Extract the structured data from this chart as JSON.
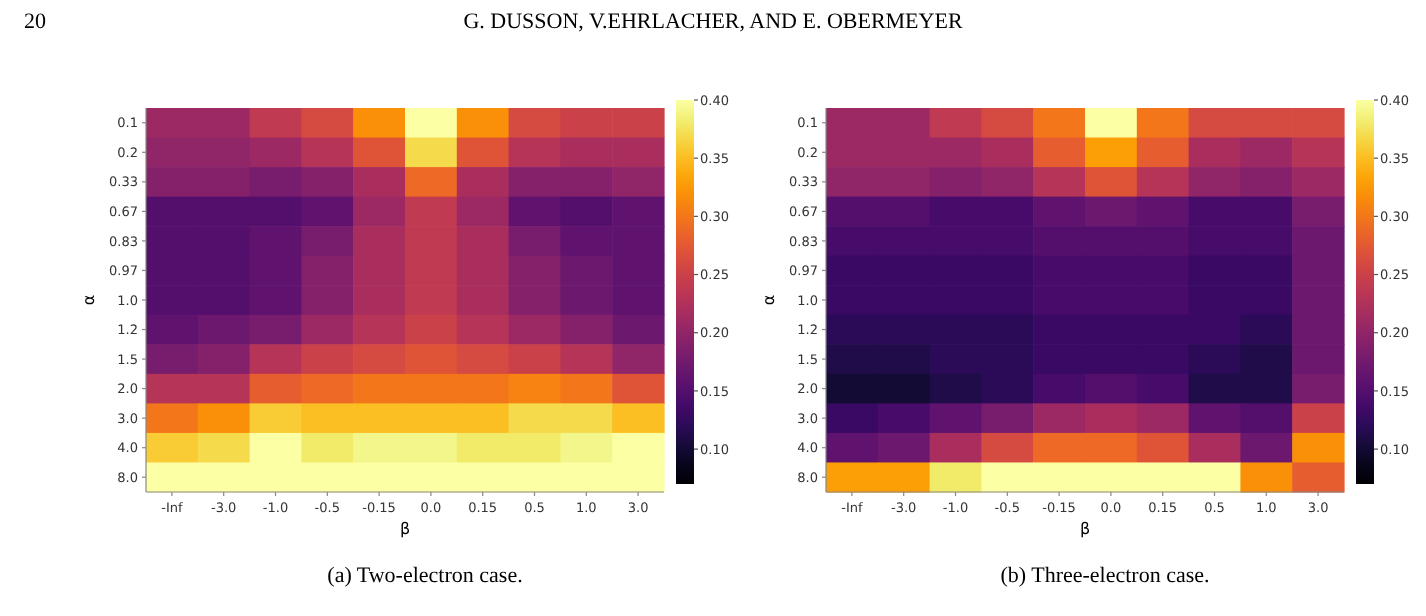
{
  "chart_data": [
    {
      "type": "heatmap",
      "xlabel": "β",
      "ylabel": "α",
      "categories": [
        "-Inf",
        "-3.0",
        "-1.0",
        "-0.5",
        "-0.15",
        "0.0",
        "0.15",
        "0.5",
        "1.0",
        "3.0"
      ],
      "y_categories": [
        "0.1",
        "0.2",
        "0.33",
        "0.67",
        "0.83",
        "0.97",
        "1.0",
        "1.2",
        "1.5",
        "2.0",
        "3.0",
        "4.0",
        "8.0"
      ],
      "cells": [
        [
          0.21,
          0.21,
          0.24,
          0.26,
          0.32,
          0.4,
          0.32,
          0.26,
          0.25,
          0.25
        ],
        [
          0.2,
          0.2,
          0.21,
          0.23,
          0.27,
          0.37,
          0.27,
          0.23,
          0.22,
          0.22
        ],
        [
          0.19,
          0.19,
          0.18,
          0.19,
          0.22,
          0.29,
          0.22,
          0.19,
          0.19,
          0.2
        ],
        [
          0.15,
          0.15,
          0.15,
          0.16,
          0.21,
          0.24,
          0.21,
          0.16,
          0.15,
          0.16
        ],
        [
          0.15,
          0.15,
          0.16,
          0.18,
          0.22,
          0.24,
          0.22,
          0.18,
          0.16,
          0.16
        ],
        [
          0.15,
          0.15,
          0.16,
          0.19,
          0.22,
          0.24,
          0.22,
          0.19,
          0.17,
          0.16
        ],
        [
          0.15,
          0.15,
          0.16,
          0.19,
          0.22,
          0.24,
          0.22,
          0.19,
          0.17,
          0.16
        ],
        [
          0.16,
          0.17,
          0.18,
          0.21,
          0.23,
          0.25,
          0.23,
          0.21,
          0.19,
          0.17
        ],
        [
          0.18,
          0.19,
          0.23,
          0.25,
          0.26,
          0.27,
          0.26,
          0.25,
          0.23,
          0.2
        ],
        [
          0.23,
          0.23,
          0.28,
          0.29,
          0.3,
          0.3,
          0.3,
          0.31,
          0.3,
          0.27
        ],
        [
          0.3,
          0.32,
          0.36,
          0.35,
          0.35,
          0.35,
          0.35,
          0.37,
          0.37,
          0.35
        ],
        [
          0.36,
          0.37,
          0.4,
          0.38,
          0.39,
          0.39,
          0.38,
          0.38,
          0.39,
          0.4
        ],
        [
          0.4,
          0.4,
          0.4,
          0.4,
          0.4,
          0.4,
          0.4,
          0.4,
          0.4,
          0.4
        ]
      ],
      "clim": [
        0.07,
        0.4
      ],
      "cticks": [
        {
          "value": 0.1,
          "label": "0.10"
        },
        {
          "value": 0.15,
          "label": "0.15"
        },
        {
          "value": 0.2,
          "label": "0.20"
        },
        {
          "value": 0.25,
          "label": "0.25"
        },
        {
          "value": 0.3,
          "label": "0.30"
        },
        {
          "value": 0.35,
          "label": "0.35"
        },
        {
          "value": 0.4,
          "label": "0.40"
        }
      ],
      "annotations": [
        "20",
        "G. DUSSON, V.EHRLACHER, AND E. OBERMEYER",
        "(a) Two-electron case."
      ]
    },
    {
      "type": "heatmap",
      "xlabel": "β",
      "ylabel": "α",
      "categories": [
        "-Inf",
        "-3.0",
        "-1.0",
        "-0.5",
        "-0.15",
        "0.0",
        "0.15",
        "0.5",
        "1.0",
        "3.0"
      ],
      "y_categories": [
        "0.1",
        "0.2",
        "0.33",
        "0.67",
        "0.83",
        "0.97",
        "1.0",
        "1.2",
        "1.5",
        "2.0",
        "3.0",
        "4.0",
        "8.0"
      ],
      "cells": [
        [
          0.21,
          0.21,
          0.24,
          0.26,
          0.3,
          0.4,
          0.3,
          0.26,
          0.26,
          0.26
        ],
        [
          0.21,
          0.21,
          0.21,
          0.22,
          0.28,
          0.33,
          0.28,
          0.22,
          0.21,
          0.23
        ],
        [
          0.2,
          0.2,
          0.19,
          0.2,
          0.23,
          0.27,
          0.23,
          0.2,
          0.19,
          0.21
        ],
        [
          0.15,
          0.15,
          0.14,
          0.14,
          0.16,
          0.17,
          0.16,
          0.14,
          0.14,
          0.18
        ],
        [
          0.14,
          0.14,
          0.14,
          0.14,
          0.15,
          0.15,
          0.15,
          0.14,
          0.14,
          0.17
        ],
        [
          0.13,
          0.13,
          0.13,
          0.13,
          0.14,
          0.14,
          0.14,
          0.13,
          0.13,
          0.17
        ],
        [
          0.13,
          0.13,
          0.13,
          0.13,
          0.14,
          0.14,
          0.14,
          0.13,
          0.13,
          0.17
        ],
        [
          0.12,
          0.12,
          0.12,
          0.12,
          0.13,
          0.13,
          0.13,
          0.13,
          0.12,
          0.17
        ],
        [
          0.11,
          0.11,
          0.12,
          0.12,
          0.13,
          0.13,
          0.13,
          0.12,
          0.11,
          0.17
        ],
        [
          0.1,
          0.1,
          0.11,
          0.12,
          0.14,
          0.15,
          0.14,
          0.11,
          0.11,
          0.18
        ],
        [
          0.13,
          0.14,
          0.16,
          0.18,
          0.21,
          0.22,
          0.21,
          0.16,
          0.15,
          0.25
        ],
        [
          0.16,
          0.17,
          0.22,
          0.26,
          0.29,
          0.29,
          0.27,
          0.22,
          0.17,
          0.32
        ],
        [
          0.33,
          0.33,
          0.38,
          0.4,
          0.4,
          0.4,
          0.4,
          0.4,
          0.32,
          0.28
        ]
      ],
      "clim": [
        0.07,
        0.4
      ],
      "cticks": [
        {
          "value": 0.1,
          "label": "0.10"
        },
        {
          "value": 0.15,
          "label": "0.15"
        },
        {
          "value": 0.2,
          "label": "0.20"
        },
        {
          "value": 0.25,
          "label": "0.25"
        },
        {
          "value": 0.3,
          "label": "0.30"
        },
        {
          "value": 0.35,
          "label": "0.35"
        },
        {
          "value": 0.4,
          "label": "0.40"
        }
      ],
      "annotations": [
        "(b) Three-electron case."
      ]
    }
  ]
}
